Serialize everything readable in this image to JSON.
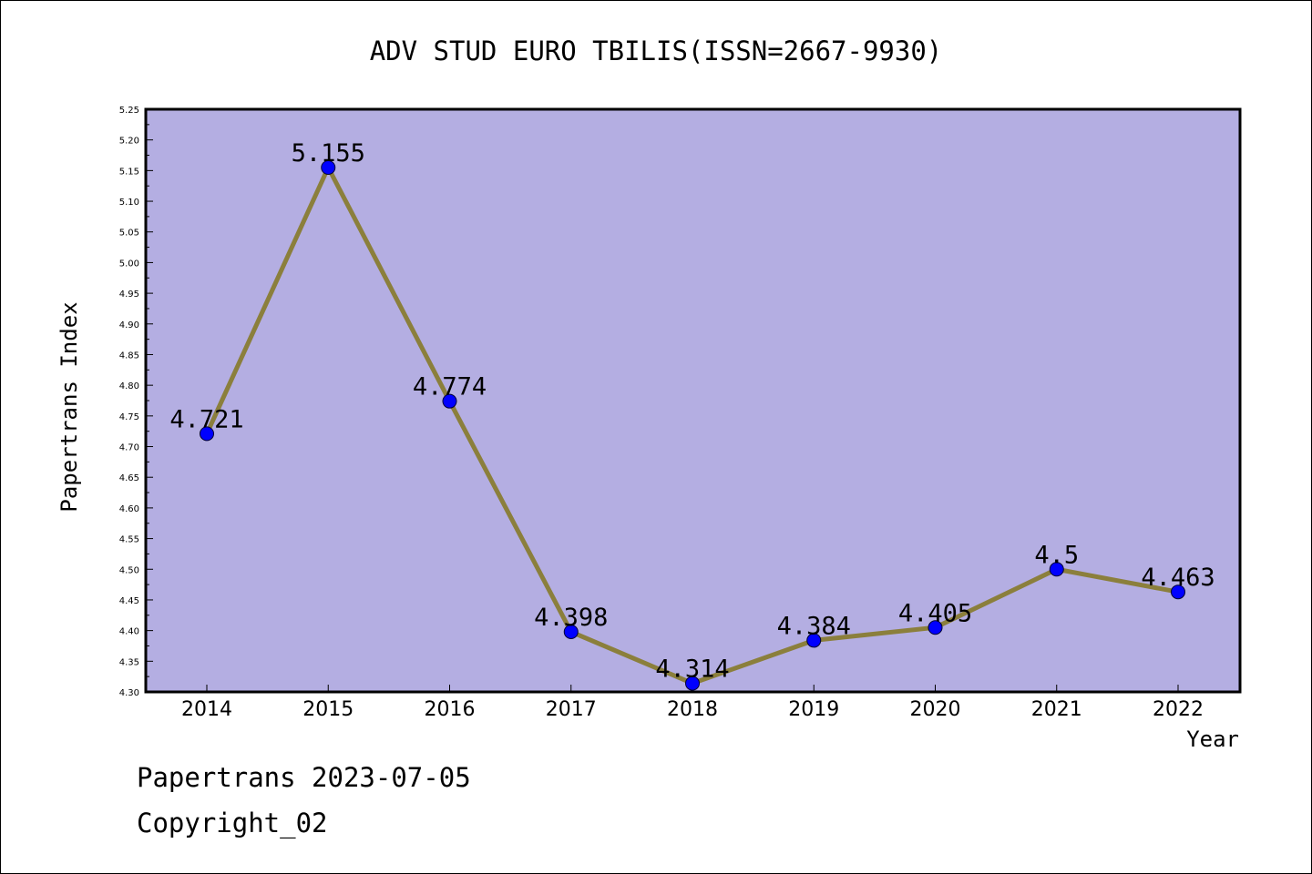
{
  "chart_data": {
    "type": "line",
    "title": "ADV STUD EURO TBILIS(ISSN=2667-9930)",
    "xlabel": "Year",
    "ylabel": "Papertrans Index",
    "categories": [
      "2014",
      "2015",
      "2016",
      "2017",
      "2018",
      "2019",
      "2020",
      "2021",
      "2022"
    ],
    "values": [
      4.721,
      5.155,
      4.774,
      4.398,
      4.314,
      4.384,
      4.405,
      4.5,
      4.463
    ],
    "value_labels": [
      "4.721",
      "5.155",
      "4.774",
      "4.398",
      "4.314",
      "4.384",
      "4.405",
      "4.5",
      "4.463"
    ],
    "ylim": [
      4.3,
      5.25
    ],
    "yticks": [
      "4.30",
      "4.35",
      "4.40",
      "4.45",
      "4.50",
      "4.55",
      "4.60",
      "4.65",
      "4.70",
      "4.75",
      "4.80",
      "4.85",
      "4.90",
      "4.95",
      "5.00",
      "5.05",
      "5.10",
      "5.15",
      "5.20",
      "5.25"
    ],
    "grid": false,
    "colors": {
      "plot_background": "#b4aee2",
      "line": "#8b7f3c",
      "marker": "#0000ff"
    }
  },
  "footer": {
    "date_line": "Papertrans 2023-07-05",
    "copyright": "Copyright_02"
  }
}
